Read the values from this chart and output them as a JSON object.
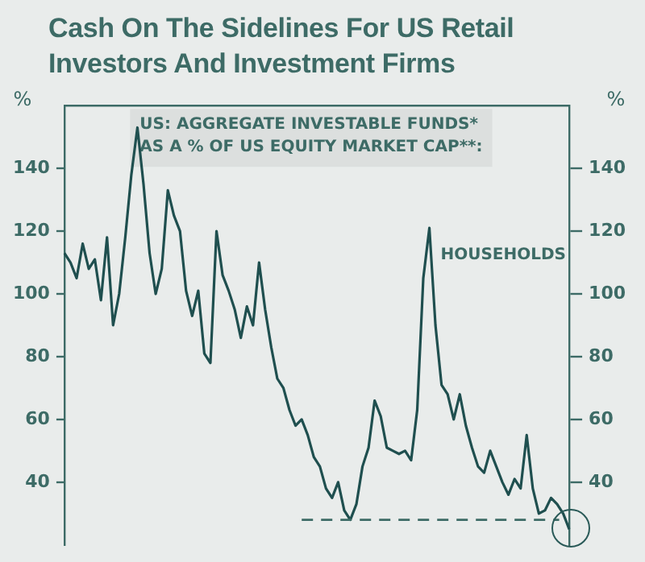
{
  "chart_data": {
    "type": "line",
    "title": "Cash On The Sidelines For US Retail Investors And Investment Firms",
    "ylabel": "%",
    "y2label": "%",
    "annotations": [
      "US: AGGREGATE INVESTABLE FUNDS* AS A % OF US EQUITY MARKET CAP**:"
    ],
    "categories": [
      null,
      null,
      null,
      null,
      null,
      null,
      null,
      null,
      null,
      null,
      null,
      null,
      null,
      null,
      null,
      null,
      null,
      null,
      null,
      null,
      null,
      null,
      null,
      null,
      null,
      null,
      null,
      null,
      null,
      null,
      null,
      null,
      null,
      null,
      null,
      null,
      null,
      null,
      null,
      null,
      null,
      null,
      null,
      null,
      null,
      null,
      null,
      null,
      null,
      null,
      null,
      null,
      null,
      null,
      null,
      null,
      null,
      null,
      null,
      null,
      null,
      null,
      null,
      null,
      null,
      null,
      null,
      null,
      null,
      null,
      null,
      null,
      null,
      null,
      null,
      null,
      null,
      null,
      null,
      null,
      null,
      null,
      null,
      null
    ],
    "series": [
      {
        "name": "HOUSEHOLDS",
        "color": "#1f4f4f",
        "values": [
          113,
          110,
          105,
          116,
          108,
          111,
          98,
          118,
          90,
          100,
          118,
          138,
          153,
          135,
          113,
          100,
          108,
          133,
          125,
          120,
          101,
          93,
          101,
          81,
          78,
          120,
          106,
          101,
          95,
          86,
          96,
          90,
          110,
          95,
          83,
          73,
          70,
          63,
          58,
          60,
          55,
          48,
          45,
          38,
          35,
          40,
          31,
          28,
          33,
          45,
          51,
          66,
          61,
          51,
          50,
          49,
          50,
          47,
          63,
          105,
          121,
          90,
          71,
          68,
          60,
          68,
          58,
          51,
          45,
          43,
          50,
          45,
          40,
          36,
          41,
          38,
          55,
          38,
          30,
          31,
          35,
          33,
          30,
          25
        ]
      }
    ],
    "ylim": [
      20,
      160
    ],
    "yticks": [
      40,
      60,
      80,
      100,
      120,
      140
    ],
    "y2lim": [
      20,
      160
    ],
    "y2ticks": [
      40,
      60,
      80,
      100,
      120,
      140
    ],
    "ref_lines": [
      {
        "axis": "y",
        "value": 28,
        "color": "#3d6b66",
        "line_style": "dashed"
      }
    ],
    "grid": false,
    "legend": false,
    "marker": "none",
    "line_style": "solid",
    "tick_labels": "y"
  }
}
